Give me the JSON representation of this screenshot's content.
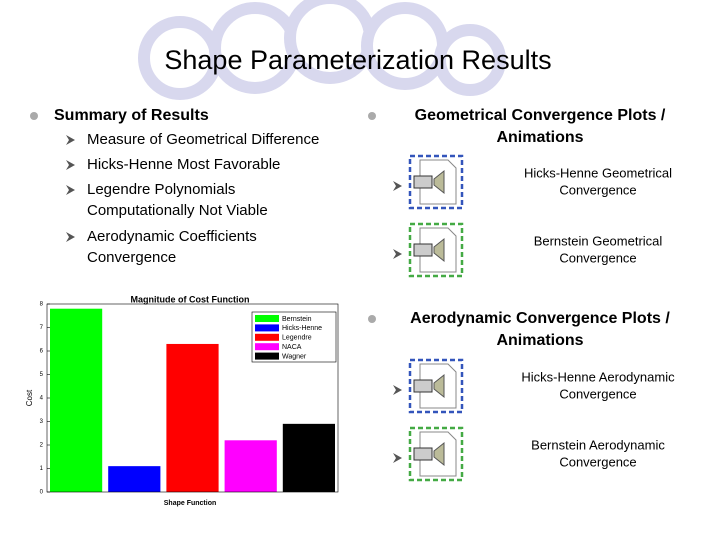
{
  "header": {
    "title": "Shape Parameterization Results"
  },
  "left": {
    "heading": "Summary of Results",
    "items": [
      {
        "lines": [
          "Measure of Geometrical Difference"
        ]
      },
      {
        "lines": [
          "Hicks-Henne Most Favorable"
        ]
      },
      {
        "lines": [
          "Legendre Polynomials",
          "Computationally Not Viable"
        ]
      },
      {
        "lines": [
          "Aerodynamic Coefficients",
          "Convergence"
        ]
      }
    ]
  },
  "right": {
    "sections": [
      {
        "heading": [
          "Geometrical Convergence Plots /",
          "Animations"
        ],
        "links": [
          {
            "lines": [
              "Hicks-Henne Geometrical",
              "Convergence"
            ]
          },
          {
            "lines": [
              "Bernstein Geometrical",
              "Convergence"
            ]
          }
        ]
      },
      {
        "heading": [
          "Aerodynamic Convergence Plots /",
          "Animations"
        ],
        "links": [
          {
            "lines": [
              "Hicks-Henne Aerodynamic",
              "Convergence"
            ]
          },
          {
            "lines": [
              "Bernstein Aerodynamic",
              "Convergence"
            ]
          }
        ]
      }
    ]
  },
  "chart_data": {
    "type": "bar",
    "title": "Magnitude of Cost Function",
    "xlabel": "Shape Function",
    "ylabel": "Cost",
    "categories": [
      "Bernstein",
      "Hicks-Henne",
      "Legendre",
      "NACA",
      "Wagner"
    ],
    "values": [
      7.8,
      1.1,
      6.3,
      2.2,
      2.9
    ],
    "colors": [
      "#00ff00",
      "#0000ff",
      "#ff0000",
      "#ff00ff",
      "#000000"
    ],
    "ylim": [
      0,
      8
    ],
    "yticks": [
      0,
      1,
      2,
      3,
      4,
      5,
      6,
      7,
      8
    ],
    "legend": "upper right"
  }
}
